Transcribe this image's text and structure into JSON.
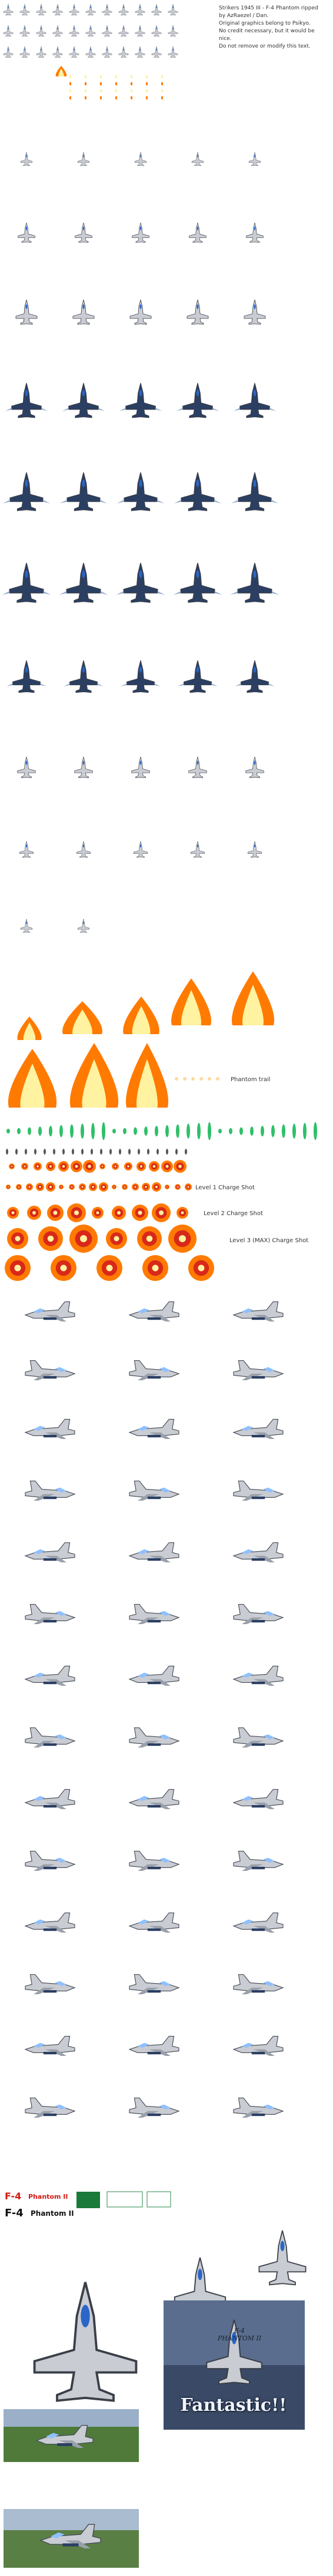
{
  "credit": {
    "lines": [
      "Strikers 1945 III - F-4 Phantom ripped",
      "by AzRaezel / Dan.",
      "Original graphics belong to Psikyo.",
      "No credit necessary, but it would be",
      "nice.",
      "Do not remove or modify this text."
    ]
  },
  "labels": {
    "phantom_trail": "Phantom trail",
    "charge_1": "Level 1 Charge Shot",
    "charge_2": "Level 2 Charge Shot",
    "charge_3": "Level 3 (MAX) Charge Shot"
  },
  "logo": {
    "title_f4_a": "F-4",
    "title_phantom_a": "Phantom II",
    "title_f4_b": "F-4",
    "title_phantom_b": "Phantom II"
  },
  "poster": {
    "name_line1": "F-4",
    "name_line2": "PHANTOM II",
    "fantastic": "Fantastic!!"
  },
  "colors": {
    "jet_body": "#c9ccd2",
    "jet_blue": "#2b3f63",
    "fire_outer": "#ff7a00",
    "fire_core": "#fff2a0",
    "green_trail": "#2fbf6a",
    "charge_red": "#d8281a"
  },
  "icons": [
    "fighter-jet-sprite",
    "fire-trail-sprite",
    "charge-shot-sprite",
    "side-view-jet-sprite",
    "title-logo",
    "poster-art",
    "ground-photo"
  ]
}
